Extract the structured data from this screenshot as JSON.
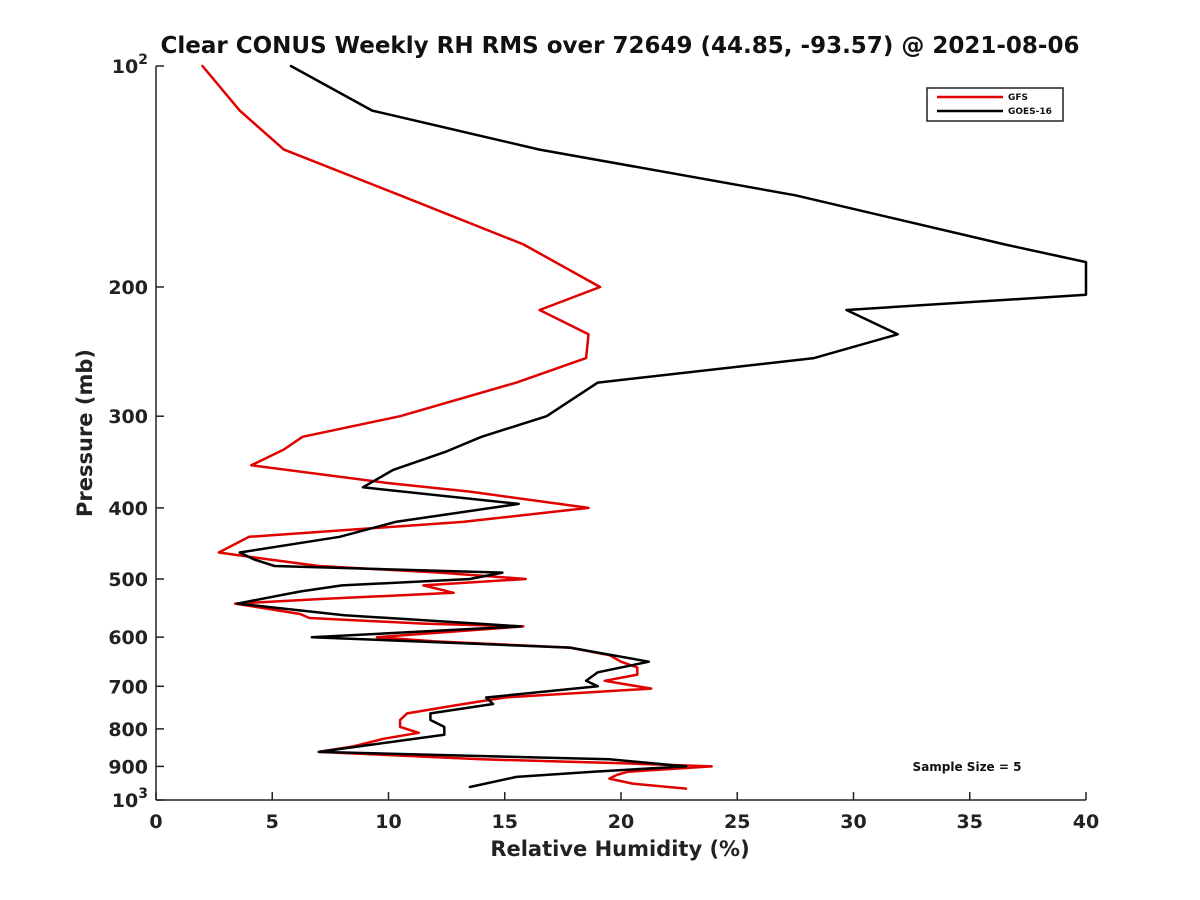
{
  "chart_data": {
    "type": "line",
    "title": "Clear CONUS Weekly RH RMS over 72649 (44.85, -93.57) @ 2021-08-06",
    "xlabel": "Relative Humidity (%)",
    "ylabel": "Pressure (mb)",
    "xlim": [
      0,
      40
    ],
    "ylim": [
      100,
      1000
    ],
    "y_scale": "log",
    "y_reversed": true,
    "grid": false,
    "legend_position": "top-right",
    "x_ticks": [
      "0",
      "5",
      "10",
      "15",
      "20",
      "25",
      "30",
      "35",
      "40"
    ],
    "y_ticks": [
      {
        "value": 100,
        "base": "10",
        "exp": "2"
      },
      {
        "value": 200,
        "label": "200"
      },
      {
        "value": 300,
        "label": "300"
      },
      {
        "value": 400,
        "label": "400"
      },
      {
        "value": 500,
        "label": "500"
      },
      {
        "value": 600,
        "label": "600"
      },
      {
        "value": 700,
        "label": "700"
      },
      {
        "value": 800,
        "label": "800"
      },
      {
        "value": 900,
        "label": "900"
      },
      {
        "value": 1000,
        "base": "10",
        "exp": "3"
      }
    ],
    "annotation": "Sample Size = 5",
    "series": [
      {
        "name": "GFS",
        "color": "#e00000",
        "points": [
          [
            2.0,
            100
          ],
          [
            3.6,
            115
          ],
          [
            5.5,
            130
          ],
          [
            10.5,
            150
          ],
          [
            15.8,
            175
          ],
          [
            19.1,
            200
          ],
          [
            16.5,
            215
          ],
          [
            18.6,
            232
          ],
          [
            18.5,
            250
          ],
          [
            15.5,
            270
          ],
          [
            10.5,
            300
          ],
          [
            6.3,
            320
          ],
          [
            5.5,
            333
          ],
          [
            4.1,
            350
          ],
          [
            10,
            370
          ],
          [
            13.5,
            380
          ],
          [
            18.6,
            400
          ],
          [
            13.2,
            418
          ],
          [
            4.0,
            438
          ],
          [
            2.7,
            460
          ],
          [
            4.8,
            470
          ],
          [
            7.0,
            480
          ],
          [
            12.2,
            490
          ],
          [
            15.9,
            500
          ],
          [
            11.5,
            510
          ],
          [
            12.8,
            522
          ],
          [
            7.3,
            532
          ],
          [
            3.4,
            540
          ],
          [
            6.2,
            558
          ],
          [
            6.6,
            565
          ],
          [
            11.5,
            575
          ],
          [
            15.8,
            580
          ],
          [
            9.5,
            600
          ],
          [
            12.0,
            608
          ],
          [
            17.8,
            620
          ],
          [
            19.5,
            635
          ],
          [
            20.0,
            648
          ],
          [
            20.7,
            660
          ],
          [
            20.7,
            675
          ],
          [
            19.3,
            688
          ],
          [
            21.3,
            705
          ],
          [
            15.0,
            725
          ],
          [
            13.0,
            742
          ],
          [
            10.8,
            762
          ],
          [
            10.5,
            778
          ],
          [
            10.5,
            795
          ],
          [
            11.3,
            810
          ],
          [
            9.8,
            825
          ],
          [
            8.5,
            845
          ],
          [
            7.0,
            860
          ],
          [
            14.0,
            880
          ],
          [
            19.5,
            890
          ],
          [
            23.9,
            900
          ],
          [
            20.3,
            915
          ],
          [
            19.8,
            925
          ],
          [
            19.5,
            935
          ],
          [
            20.5,
            950
          ],
          [
            22.8,
            965
          ]
        ]
      },
      {
        "name": "GOES-16",
        "color": "#000000",
        "points": [
          [
            5.8,
            100
          ],
          [
            9.3,
            115
          ],
          [
            16.5,
            130
          ],
          [
            27.5,
            150
          ],
          [
            36.5,
            175
          ],
          [
            40.0,
            185
          ],
          [
            40.0,
            205
          ],
          [
            29.7,
            215
          ],
          [
            31.9,
            232
          ],
          [
            28.3,
            250
          ],
          [
            19.0,
            270
          ],
          [
            16.8,
            300
          ],
          [
            14.0,
            320
          ],
          [
            12.5,
            335
          ],
          [
            10.2,
            355
          ],
          [
            8.9,
            375
          ],
          [
            15.6,
            395
          ],
          [
            10.3,
            418
          ],
          [
            7.9,
            438
          ],
          [
            3.6,
            460
          ],
          [
            4.2,
            470
          ],
          [
            5.1,
            480
          ],
          [
            14.9,
            490
          ],
          [
            13.5,
            500
          ],
          [
            8.0,
            510
          ],
          [
            6.2,
            520
          ],
          [
            3.5,
            540
          ],
          [
            8.1,
            560
          ],
          [
            15.7,
            580
          ],
          [
            6.7,
            600
          ],
          [
            17.8,
            620
          ],
          [
            21.2,
            648
          ],
          [
            19.0,
            670
          ],
          [
            18.5,
            688
          ],
          [
            19.0,
            700
          ],
          [
            14.2,
            725
          ],
          [
            14.5,
            740
          ],
          [
            11.8,
            762
          ],
          [
            11.8,
            778
          ],
          [
            12.4,
            795
          ],
          [
            12.4,
            815
          ],
          [
            7.0,
            860
          ],
          [
            19.5,
            880
          ],
          [
            22.8,
            900
          ],
          [
            18.8,
            915
          ],
          [
            15.5,
            930
          ],
          [
            13.5,
            960
          ]
        ]
      }
    ]
  }
}
